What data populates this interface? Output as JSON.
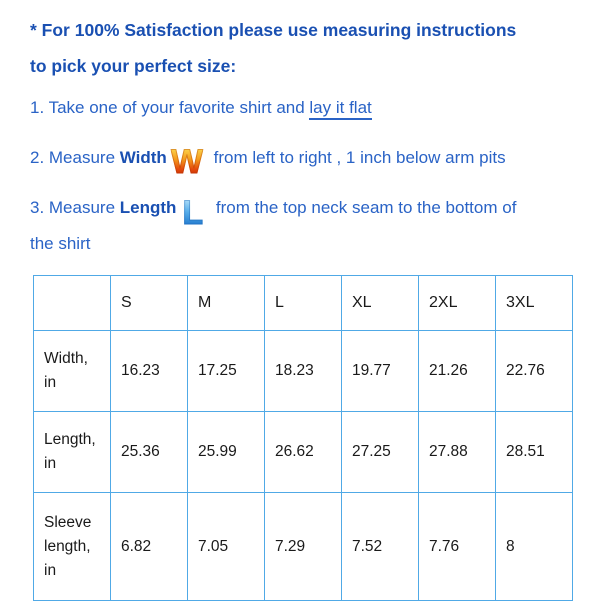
{
  "heading": {
    "line1": "* For 100% Satisfaction please use measuring instructions",
    "line2": "to pick your perfect size:"
  },
  "steps": {
    "step1": {
      "prefix": "1. Take one of your favorite shirt and ",
      "underlined": "lay it flat"
    },
    "step2": {
      "prefix": "2. Measure ",
      "keyword": "Width",
      "icon_letter": "W",
      "suffix": " from left to right , 1 inch below arm pits"
    },
    "step3": {
      "prefix": "3. Measure ",
      "keyword": "Length",
      "icon_letter": "L",
      "suffix_line1": " from the top neck seam to the bottom of",
      "suffix_line2": "the shirt"
    }
  },
  "size_table": {
    "columns": [
      "S",
      "M",
      "L",
      "XL",
      "2XL",
      "3XL"
    ],
    "rows": [
      {
        "label": "Width, in",
        "values": [
          "16.23",
          "17.25",
          "18.23",
          "19.77",
          "21.26",
          "22.76"
        ]
      },
      {
        "label": "Length, in",
        "values": [
          "25.36",
          "25.99",
          "26.62",
          "27.25",
          "27.88",
          "28.51"
        ]
      },
      {
        "label": "Sleeve length, in",
        "values": [
          "6.82",
          "7.05",
          "7.29",
          "7.52",
          "7.76",
          "8"
        ]
      }
    ]
  },
  "colors": {
    "heading_blue": "#1a50b2",
    "body_blue": "#2a63c6",
    "table_border_blue": "#50a9e6",
    "table_text": "#1a1a1a",
    "w_icon_top": "#fbd24a",
    "w_icon_bottom": "#c93305",
    "l_icon_top": "#a9dbf8",
    "l_icon_bottom": "#1f78cd"
  }
}
